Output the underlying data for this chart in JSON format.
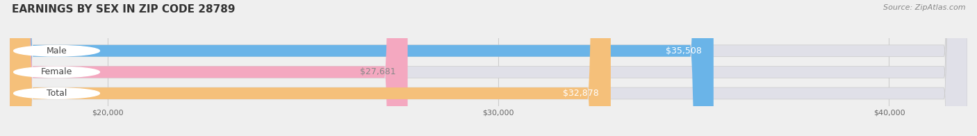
{
  "title": "EARNINGS BY SEX IN ZIP CODE 28789",
  "source": "Source: ZipAtlas.com",
  "categories": [
    "Male",
    "Female",
    "Total"
  ],
  "values": [
    35508,
    27681,
    32878
  ],
  "bar_colors": [
    "#6ab4e8",
    "#f4a8c0",
    "#f5c07a"
  ],
  "label_colors": [
    "white",
    "#888888",
    "white"
  ],
  "label_texts": [
    "$35,508",
    "$27,681",
    "$32,878"
  ],
  "x_min": 17500,
  "x_max": 42000,
  "x_ticks": [
    20000,
    30000,
    40000
  ],
  "x_tick_labels": [
    "$20,000",
    "$30,000",
    "$40,000"
  ],
  "background_color": "#efefef",
  "bar_bg_color": "#e0e0e8",
  "title_fontsize": 11,
  "source_fontsize": 8,
  "label_fontsize": 9,
  "cat_fontsize": 9,
  "tick_fontsize": 8
}
